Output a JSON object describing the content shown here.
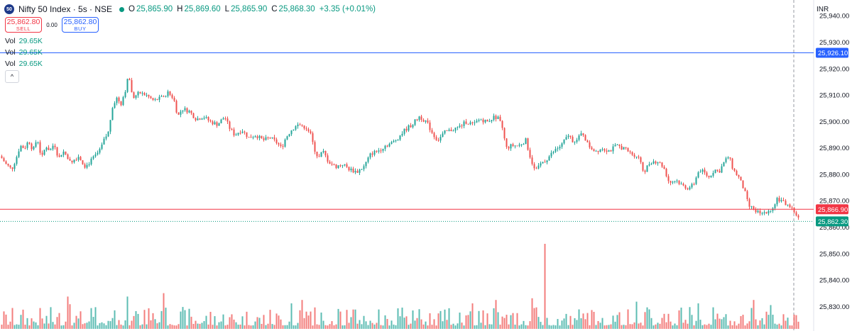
{
  "header": {
    "logo_text": "50",
    "title": "Nifty 50 Index · 5s · NSE",
    "ohlc": [
      {
        "k": "O",
        "v": "25,865.90"
      },
      {
        "k": "H",
        "v": "25,869.60"
      },
      {
        "k": "L",
        "v": "25,865.90"
      },
      {
        "k": "C",
        "v": "25,868.30"
      }
    ],
    "change": "+3.35 (+0.01%)"
  },
  "trade": {
    "sell_price": "25,862.80",
    "sell_label": "SELL",
    "spread": "0.00",
    "buy_price": "25,862.80",
    "buy_label": "BUY"
  },
  "volume_rows": [
    {
      "k": "Vol",
      "v": "29.65K"
    },
    {
      "k": "Vol",
      "v": "29.65K"
    },
    {
      "k": "Vol",
      "v": "29.65K"
    }
  ],
  "collapse_glyph": "^",
  "currency": "INR",
  "colors": {
    "up": "#26a69a",
    "down": "#ef5350",
    "blue_line": "#2962ff",
    "red_line": "#f23645",
    "current": "#089981"
  },
  "chart_data": {
    "type": "candlestick",
    "interval": "5s",
    "y_axis": {
      "side": "right",
      "range": [
        25825,
        25940
      ],
      "ticks": [
        25830,
        25840,
        25850,
        25860,
        25870,
        25880,
        25890,
        25900,
        25910,
        25920,
        25930,
        25940
      ],
      "tick_labels": [
        "25,830.00",
        "25,840.00",
        "25,850.00",
        "25,860.00",
        "25,870.00",
        "25,880.00",
        "25,890.00",
        "25,900.00",
        "25,910.00",
        "25,920.00",
        "25,930.00",
        "25,940.00"
      ]
    },
    "price_lines": [
      {
        "name": "blue",
        "value": 25926.1,
        "label": "25,926.10",
        "color": "#2962ff",
        "style": "solid"
      },
      {
        "name": "red",
        "value": 25866.9,
        "label": "25,866.90",
        "color": "#f23645",
        "style": "solid"
      },
      {
        "name": "current",
        "value": 25862.3,
        "label": "25,862.30",
        "color": "#089981",
        "style": "dotted"
      }
    ],
    "close_path": [
      [
        0,
        25887
      ],
      [
        8,
        25884
      ],
      [
        16,
        25882
      ],
      [
        22,
        25886
      ],
      [
        28,
        25891
      ],
      [
        34,
        25890
      ],
      [
        40,
        25893
      ],
      [
        46,
        25889
      ],
      [
        52,
        25894
      ],
      [
        58,
        25886
      ],
      [
        64,
        25891
      ],
      [
        70,
        25889
      ],
      [
        76,
        25892
      ],
      [
        82,
        25886
      ],
      [
        88,
        25889
      ],
      [
        94,
        25887
      ],
      [
        100,
        25885
      ],
      [
        110,
        25887
      ],
      [
        120,
        25883
      ],
      [
        130,
        25886
      ],
      [
        140,
        25889
      ],
      [
        146,
        25893
      ],
      [
        152,
        25896
      ],
      [
        158,
        25906
      ],
      [
        164,
        25909
      ],
      [
        170,
        25907
      ],
      [
        176,
        25912
      ],
      [
        181,
        25918
      ],
      [
        186,
        25909
      ],
      [
        196,
        25911
      ],
      [
        206,
        25910
      ],
      [
        216,
        25908
      ],
      [
        226,
        25909
      ],
      [
        236,
        25911
      ],
      [
        244,
        25909
      ],
      [
        250,
        25902
      ],
      [
        256,
        25905
      ],
      [
        266,
        25904
      ],
      [
        276,
        25901
      ],
      [
        286,
        25902
      ],
      [
        296,
        25900
      ],
      [
        306,
        25899
      ],
      [
        316,
        25902
      ],
      [
        322,
        25898
      ],
      [
        330,
        25895
      ],
      [
        340,
        25897
      ],
      [
        350,
        25894
      ],
      [
        360,
        25895
      ],
      [
        370,
        25893
      ],
      [
        380,
        25894
      ],
      [
        390,
        25892
      ],
      [
        396,
        25890
      ],
      [
        402,
        25894
      ],
      [
        410,
        25897
      ],
      [
        420,
        25899
      ],
      [
        430,
        25898
      ],
      [
        436,
        25896
      ],
      [
        442,
        25890
      ],
      [
        448,
        25886
      ],
      [
        454,
        25889
      ],
      [
        462,
        25885
      ],
      [
        472,
        25883
      ],
      [
        482,
        25884
      ],
      [
        492,
        25882
      ],
      [
        502,
        25881
      ],
      [
        512,
        25883
      ],
      [
        522,
        25888
      ],
      [
        532,
        25889
      ],
      [
        542,
        25891
      ],
      [
        552,
        25892
      ],
      [
        560,
        25894
      ],
      [
        570,
        25897
      ],
      [
        580,
        25899
      ],
      [
        590,
        25902
      ],
      [
        600,
        25900
      ],
      [
        610,
        25895
      ],
      [
        616,
        25893
      ],
      [
        626,
        25896
      ],
      [
        636,
        25897
      ],
      [
        646,
        25898
      ],
      [
        656,
        25900
      ],
      [
        666,
        25899
      ],
      [
        676,
        25901
      ],
      [
        686,
        25900
      ],
      [
        696,
        25902
      ],
      [
        702,
        25901
      ],
      [
        708,
        25897
      ],
      [
        712,
        25890
      ],
      [
        720,
        25891
      ],
      [
        730,
        25891
      ],
      [
        740,
        25893
      ],
      [
        746,
        25887
      ],
      [
        752,
        25882
      ],
      [
        760,
        25884
      ],
      [
        770,
        25886
      ],
      [
        780,
        25889
      ],
      [
        790,
        25891
      ],
      [
        800,
        25895
      ],
      [
        806,
        25893
      ],
      [
        812,
        25893
      ],
      [
        820,
        25896
      ],
      [
        828,
        25891
      ],
      [
        838,
        25889
      ],
      [
        848,
        25890
      ],
      [
        858,
        25889
      ],
      [
        868,
        25891
      ],
      [
        878,
        25890
      ],
      [
        888,
        25888
      ],
      [
        898,
        25887
      ],
      [
        906,
        25881
      ],
      [
        916,
        25885
      ],
      [
        926,
        25885
      ],
      [
        934,
        25883
      ],
      [
        942,
        25877
      ],
      [
        952,
        25878
      ],
      [
        960,
        25876
      ],
      [
        968,
        25875
      ],
      [
        976,
        25876
      ],
      [
        984,
        25882
      ],
      [
        990,
        25881
      ],
      [
        998,
        25879
      ],
      [
        1006,
        25882
      ],
      [
        1012,
        25881
      ],
      [
        1020,
        25885
      ],
      [
        1026,
        25887
      ],
      [
        1032,
        25882
      ],
      [
        1040,
        25879
      ],
      [
        1048,
        25874
      ],
      [
        1054,
        25868
      ],
      [
        1062,
        25867
      ],
      [
        1070,
        25865
      ],
      [
        1078,
        25866
      ],
      [
        1086,
        25867
      ],
      [
        1094,
        25871
      ],
      [
        1100,
        25870
      ],
      [
        1106,
        25869
      ],
      [
        1112,
        25868
      ],
      [
        1118,
        25866
      ],
      [
        1123,
        25864
      ],
      [
        1126,
        25862
      ]
    ],
    "volume_spikes": [
      [
        97,
        0.38
      ],
      [
        100,
        0.29
      ],
      [
        181,
        0.38
      ],
      [
        230,
        0.42
      ],
      [
        410,
        0.3
      ],
      [
        426,
        0.34
      ],
      [
        665,
        0.3
      ],
      [
        700,
        0.34
      ],
      [
        769,
        1.0
      ],
      [
        749,
        0.36
      ],
      [
        898,
        0.32
      ],
      [
        985,
        0.3
      ],
      [
        1063,
        0.34
      ],
      [
        1085,
        0.28
      ]
    ]
  }
}
